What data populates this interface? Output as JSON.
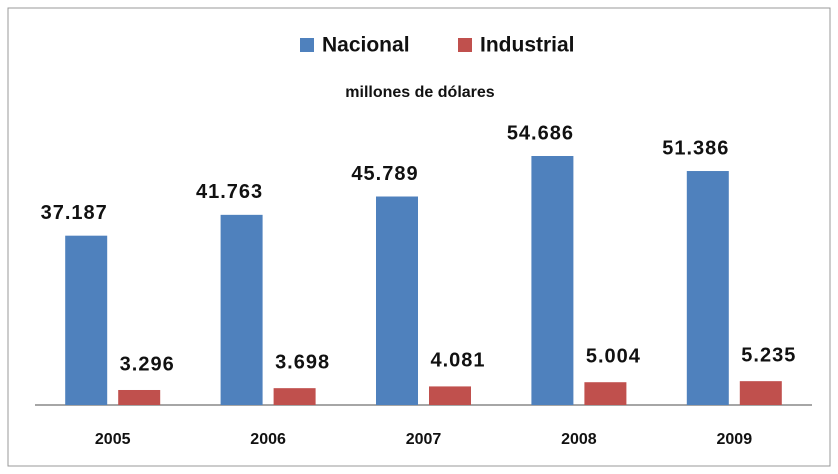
{
  "chart_data": {
    "type": "bar",
    "subtitle": "millones de dólares",
    "categories": [
      "2005",
      "2006",
      "2007",
      "2008",
      "2009"
    ],
    "series": [
      {
        "name": "Nacional",
        "color": "#4f81bd",
        "values": [
          37187,
          41763,
          45789,
          54686,
          51386
        ],
        "value_labels": [
          "37.187",
          "41.763",
          "45.789",
          "54.686",
          "51.386"
        ]
      },
      {
        "name": "Industrial",
        "color": "#c0504d",
        "values": [
          3296,
          3698,
          4081,
          5004,
          5235
        ],
        "value_labels": [
          "3.296",
          "3.698",
          "4.081",
          "5.004",
          "5.235"
        ]
      }
    ],
    "legend": "top"
  }
}
